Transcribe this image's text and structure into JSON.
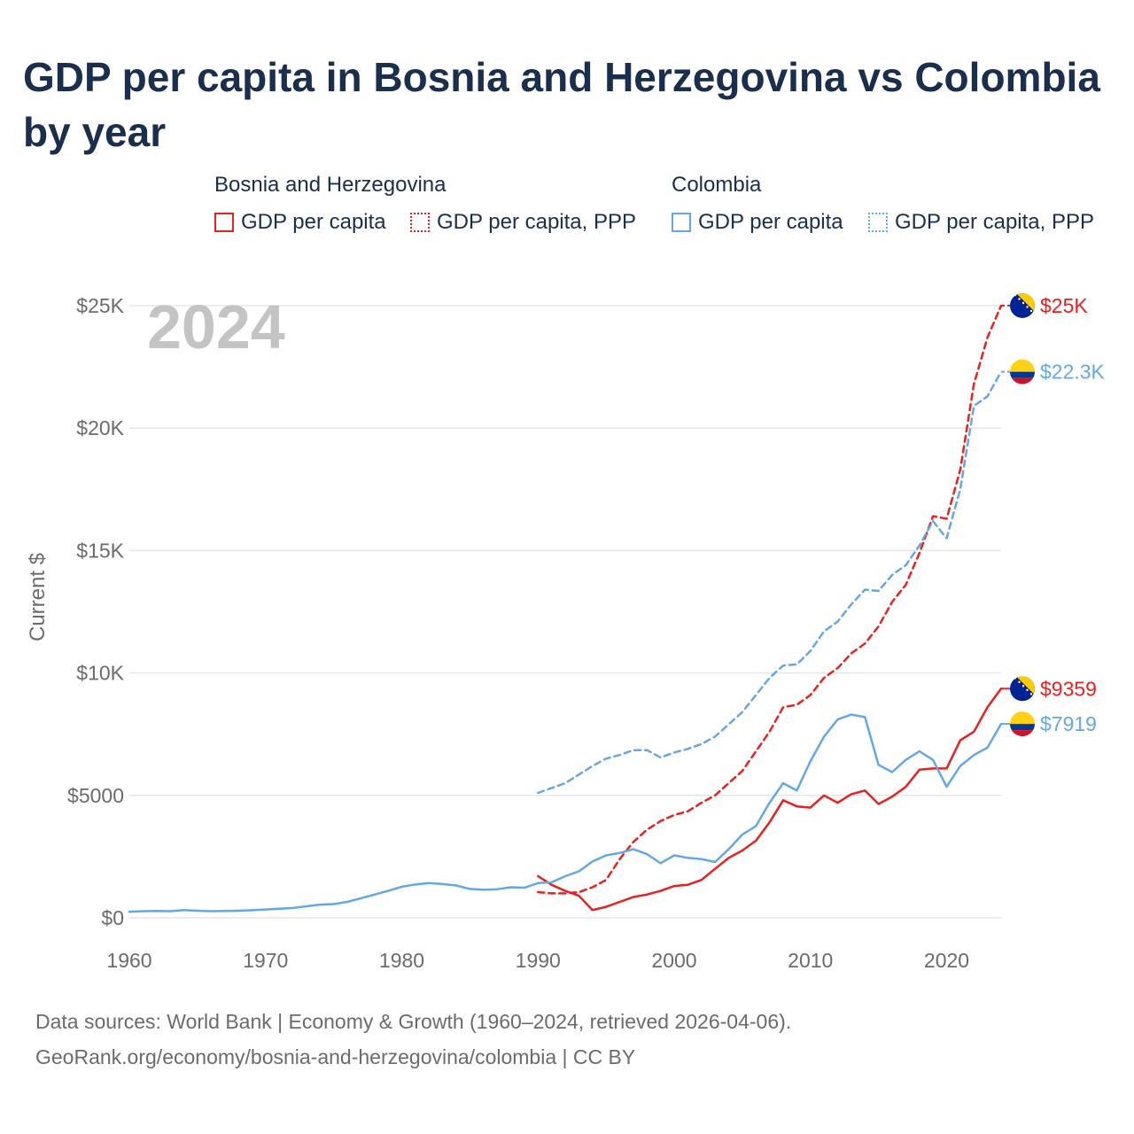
{
  "title": "GDP per capita in Bosnia and Herzegovina vs Colombia by year",
  "legend": {
    "groups": [
      {
        "name": "Bosnia and Herzegovina",
        "items": [
          {
            "label": "GDP per capita",
            "style": "solid",
            "color": "#e8211f"
          },
          {
            "label": "GDP per capita, PPP",
            "style": "dotted",
            "color": "#e8211f"
          }
        ]
      },
      {
        "name": "Colombia",
        "items": [
          {
            "label": "GDP per capita",
            "style": "solid",
            "color": "#63a7e5"
          },
          {
            "label": "GDP per capita, PPP",
            "style": "dotted",
            "color": "#63a7e5"
          }
        ]
      }
    ]
  },
  "year_overlay": "2024",
  "sources": {
    "line1": "Data sources: World Bank | Economy & Growth (1960–2024, retrieved 2026-04-06).",
    "line2": "GeoRank.org/economy/bosnia-and-herzegovina/colombia | CC BY"
  },
  "chart_data": {
    "type": "line",
    "title": "GDP per capita in Bosnia and Herzegovina vs Colombia by year",
    "xlabel": "",
    "ylabel": "Current $",
    "xlim": [
      1960,
      2024
    ],
    "ylim": [
      0,
      25000
    ],
    "xticks": [
      1960,
      1970,
      1980,
      1990,
      2000,
      2010,
      2020
    ],
    "xtick_labels": [
      "1960",
      "1970",
      "1980",
      "1990",
      "2000",
      "2010",
      "2020"
    ],
    "yticks": [
      0,
      5000,
      10000,
      15000,
      20000,
      25000
    ],
    "ytick_labels": [
      "$0",
      "$5000",
      "$10K",
      "$15K",
      "$20K",
      "$25K"
    ],
    "grid": true,
    "series": [
      {
        "name": "Bosnia and Herzegovina GDP per capita",
        "country": "Bosnia and Herzegovina",
        "color": "#e8211f",
        "dash": "solid",
        "end_label": "$9359",
        "x": [
          1990,
          1991,
          1992,
          1993,
          1994,
          1995,
          1996,
          1997,
          1998,
          1999,
          2000,
          2001,
          2002,
          2003,
          2004,
          2005,
          2006,
          2007,
          2008,
          2009,
          2010,
          2011,
          2012,
          2013,
          2014,
          2015,
          2016,
          2017,
          2018,
          2019,
          2020,
          2021,
          2022,
          2023,
          2024
        ],
        "values": [
          1700,
          1350,
          1100,
          900,
          320,
          450,
          650,
          850,
          950,
          1100,
          1300,
          1350,
          1550,
          2000,
          2450,
          2750,
          3150,
          3900,
          4800,
          4550,
          4500,
          5000,
          4700,
          5050,
          5200,
          4650,
          4950,
          5350,
          6050,
          6100,
          6100,
          7250,
          7600,
          8600,
          9359
        ]
      },
      {
        "name": "Bosnia and Herzegovina GDP per capita, PPP",
        "country": "Bosnia and Herzegovina",
        "color": "#e8211f",
        "dash": "dashed",
        "end_label": "$25K",
        "x": [
          1990,
          1991,
          1992,
          1993,
          1994,
          1995,
          1996,
          1997,
          1998,
          1999,
          2000,
          2001,
          2002,
          2003,
          2004,
          2005,
          2006,
          2007,
          2008,
          2009,
          2010,
          2011,
          2012,
          2013,
          2014,
          2015,
          2016,
          2017,
          2018,
          2019,
          2020,
          2021,
          2022,
          2023,
          2024
        ],
        "values": [
          1050,
          1000,
          1000,
          1050,
          1250,
          1550,
          2400,
          3100,
          3600,
          3950,
          4200,
          4350,
          4700,
          5000,
          5500,
          6000,
          6800,
          7600,
          8600,
          8700,
          9100,
          9800,
          10200,
          10800,
          11200,
          11900,
          12900,
          13600,
          14900,
          16400,
          16300,
          18300,
          21800,
          23700,
          25000
        ]
      },
      {
        "name": "Colombia GDP per capita",
        "country": "Colombia",
        "color": "#63a7e5",
        "dash": "solid",
        "end_label": "$7919",
        "x": [
          1960,
          1961,
          1962,
          1963,
          1964,
          1965,
          1966,
          1967,
          1968,
          1969,
          1970,
          1971,
          1972,
          1973,
          1974,
          1975,
          1976,
          1977,
          1978,
          1979,
          1980,
          1981,
          1982,
          1983,
          1984,
          1985,
          1986,
          1987,
          1988,
          1989,
          1990,
          1991,
          1992,
          1993,
          1994,
          1995,
          1996,
          1997,
          1998,
          1999,
          2000,
          2001,
          2002,
          2003,
          2004,
          2005,
          2006,
          2007,
          2008,
          2009,
          2010,
          2011,
          2012,
          2013,
          2014,
          2015,
          2016,
          2017,
          2018,
          2019,
          2020,
          2021,
          2022,
          2023,
          2024
        ],
        "values": [
          250,
          270,
          280,
          270,
          320,
          290,
          270,
          280,
          290,
          310,
          340,
          370,
          400,
          470,
          540,
          560,
          650,
          800,
          950,
          1100,
          1270,
          1360,
          1420,
          1380,
          1320,
          1180,
          1150,
          1170,
          1250,
          1230,
          1420,
          1450,
          1700,
          1900,
          2300,
          2550,
          2650,
          2800,
          2600,
          2230,
          2550,
          2450,
          2400,
          2280,
          2800,
          3400,
          3750,
          4700,
          5500,
          5200,
          6400,
          7400,
          8100,
          8300,
          8200,
          6250,
          5950,
          6450,
          6800,
          6450,
          5350,
          6200,
          6650,
          6950,
          7919
        ]
      },
      {
        "name": "Colombia GDP per capita, PPP",
        "country": "Colombia",
        "color": "#63a7e5",
        "dash": "dashed",
        "end_label": "$22.3K",
        "x": [
          1990,
          1991,
          1992,
          1993,
          1994,
          1995,
          1996,
          1997,
          1998,
          1999,
          2000,
          2001,
          2002,
          2003,
          2004,
          2005,
          2006,
          2007,
          2008,
          2009,
          2010,
          2011,
          2012,
          2013,
          2014,
          2015,
          2016,
          2017,
          2018,
          2019,
          2020,
          2021,
          2022,
          2023,
          2024
        ],
        "values": [
          5100,
          5300,
          5500,
          5850,
          6200,
          6500,
          6650,
          6850,
          6850,
          6550,
          6750,
          6900,
          7100,
          7400,
          7900,
          8400,
          9100,
          9800,
          10300,
          10350,
          10900,
          11700,
          12100,
          12800,
          13400,
          13350,
          14000,
          14400,
          15200,
          16200,
          15500,
          17500,
          20900,
          21300,
          22300
        ]
      }
    ]
  }
}
